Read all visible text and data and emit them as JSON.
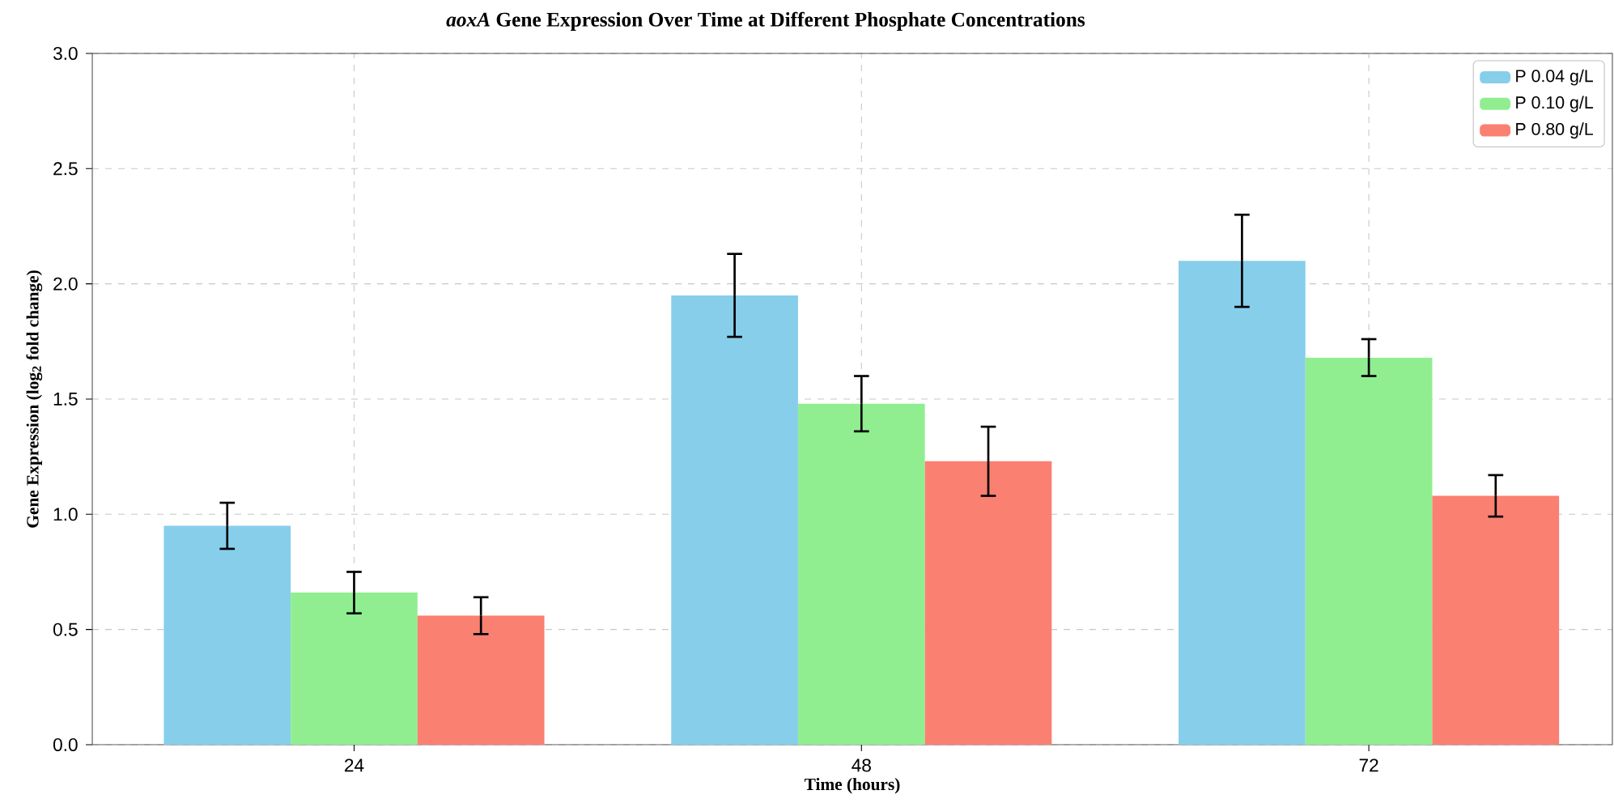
{
  "chart_data": {
    "type": "bar",
    "title": "*aoxA* Gene Expression Over Time at Different Phosphate Concentrations",
    "xlabel": "Time (hours)",
    "ylabel": "Gene Expression (log$_{2}$ fold change)",
    "categories": [
      "24",
      "48",
      "72"
    ],
    "series": [
      {
        "name": "P 0.04 g/L",
        "color": "#87ceeb",
        "values": [
          0.95,
          1.95,
          2.1
        ],
        "errors": [
          0.1,
          0.18,
          0.2
        ]
      },
      {
        "name": "P 0.10 g/L",
        "color": "#90ee90",
        "values": [
          0.66,
          1.48,
          1.68
        ],
        "errors": [
          0.09,
          0.12,
          0.08
        ]
      },
      {
        "name": "P 0.80 g/L",
        "color": "#fa8072",
        "values": [
          0.56,
          1.23,
          1.08
        ],
        "errors": [
          0.08,
          0.15,
          0.09
        ]
      }
    ],
    "ylim": [
      0,
      3
    ],
    "yticks": [
      {
        "value": 0,
        "label": "0.0"
      },
      {
        "value": 0.5,
        "label": "0.5"
      },
      {
        "value": 1,
        "label": "1.0"
      },
      {
        "value": 1.5,
        "label": "1.5"
      },
      {
        "value": 2,
        "label": "2.0"
      },
      {
        "value": 2.5,
        "label": "2.5"
      },
      {
        "value": 3,
        "label": "3.0"
      }
    ],
    "grid": true,
    "legend": "top right"
  }
}
